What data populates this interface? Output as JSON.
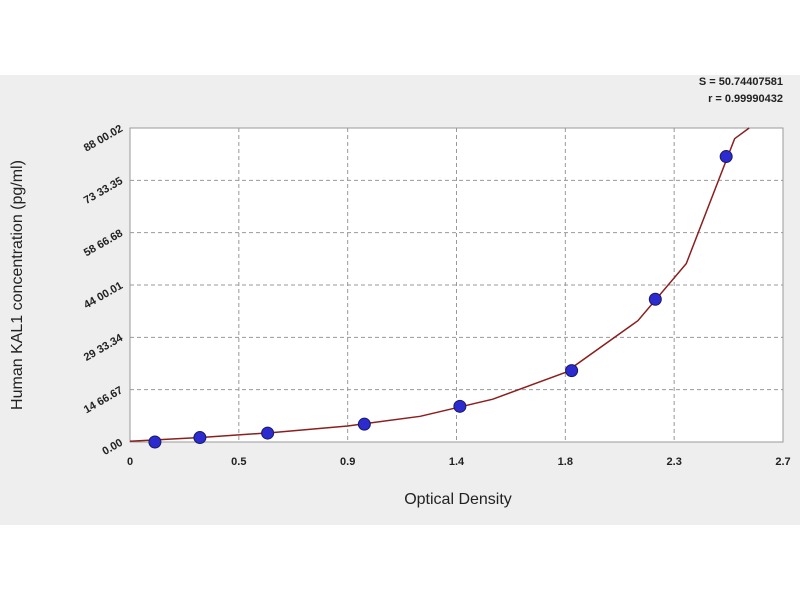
{
  "chart_data": {
    "type": "scatter",
    "y_label": "Human KAL1 concentration (pg/ml)",
    "x_label": "Optical Density",
    "annotations": [
      "S = 50.74407581",
      "r = 0.99990432"
    ],
    "x": [
      0.103,
      0.289,
      0.569,
      0.969,
      1.364,
      1.826,
      2.172,
      2.465
    ],
    "values": [
      0,
      125,
      250,
      500,
      1000,
      2000,
      4000,
      8000
    ],
    "color": "#2b2bd0",
    "fit": {
      "color": "#8b1f1f",
      "x": [
        0.0,
        0.3,
        0.6,
        0.9,
        1.2,
        1.5,
        1.8,
        2.1,
        2.3,
        2.5,
        2.56
      ],
      "y": [
        20,
        130,
        270,
        450,
        720,
        1200,
        1950,
        3400,
        5000,
        8500,
        8800
      ]
    },
    "xlim": [
      0,
      2.7
    ],
    "xticks": [
      0,
      {
        "value": 0.45,
        "label": "0.5"
      },
      0.9,
      {
        "value": 1.35,
        "label": "1.4"
      },
      1.8,
      {
        "value": 2.25,
        "label": "2.3"
      },
      2.7
    ],
    "ylim": [
      0,
      8800.02
    ],
    "yticks": [
      {
        "value": 0,
        "label": "0.00"
      },
      {
        "value": 1466.67,
        "label": "14 66.67"
      },
      {
        "value": 2933.34,
        "label": "29 33.34"
      },
      {
        "value": 4400.01,
        "label": "44 00.01"
      },
      {
        "value": 5866.68,
        "label": "58 66.68"
      },
      {
        "value": 7333.35,
        "label": "73 33.35"
      },
      {
        "value": 8800.02,
        "label": "88 00.02"
      }
    ],
    "grid": true
  }
}
